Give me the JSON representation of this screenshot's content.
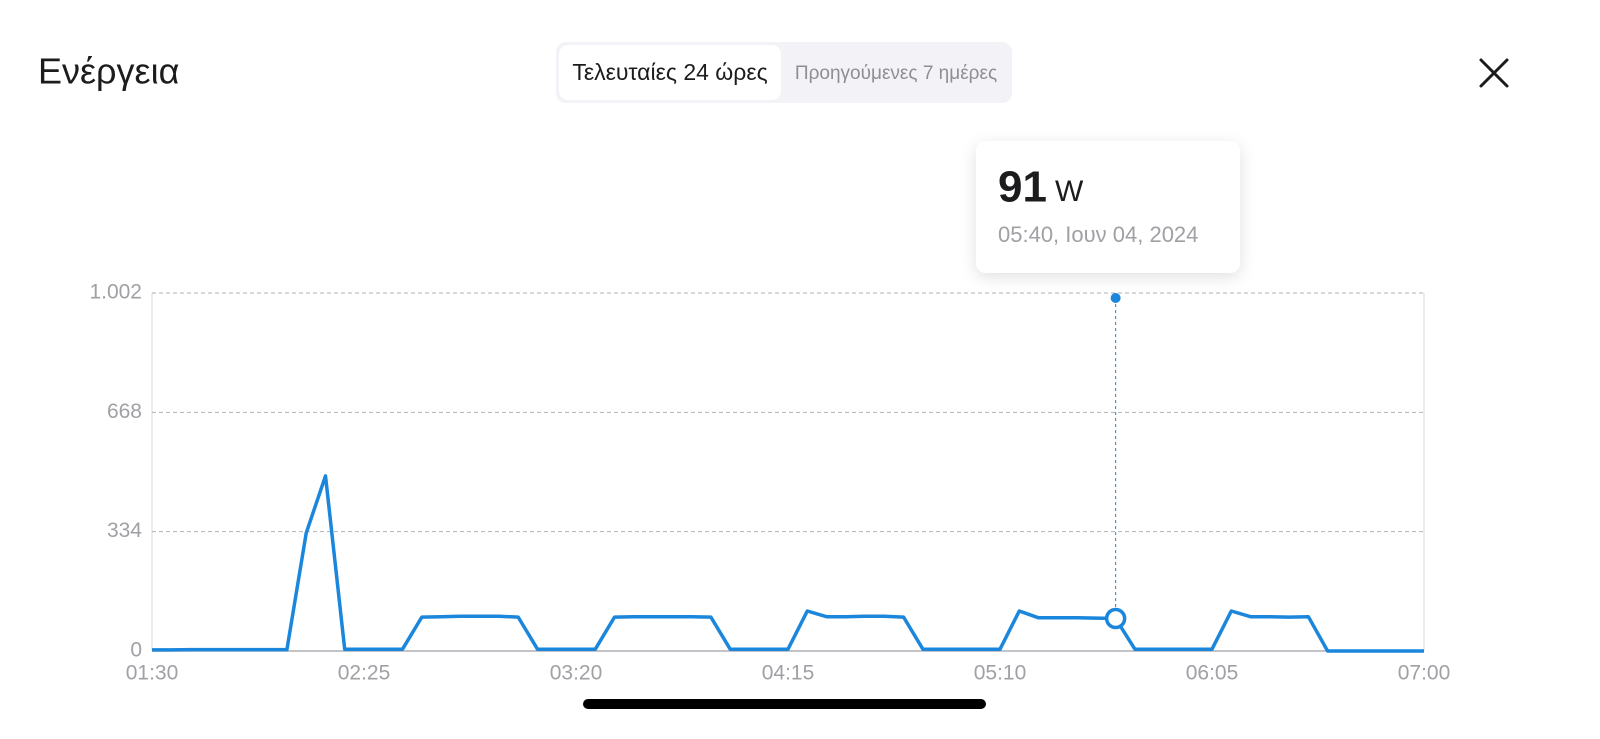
{
  "header": {
    "title": "Ενέργεια",
    "tabs": [
      "Τελευταίες 24 ώρες",
      "Προηγούμενες 7 ημέρες"
    ]
  },
  "chart_data": {
    "type": "line",
    "color": "#1a86dc",
    "grid": true,
    "categories": [
      "01:30",
      null,
      null,
      null,
      null,
      null,
      null,
      null,
      null,
      null,
      null,
      "02:25",
      null,
      null,
      null,
      null,
      null,
      null,
      null,
      null,
      null,
      null,
      "03:20",
      null,
      null,
      null,
      null,
      null,
      null,
      null,
      null,
      null,
      null,
      "04:15",
      null,
      null,
      null,
      null,
      null,
      null,
      null,
      null,
      null,
      null,
      "05:10",
      null,
      null,
      null,
      null,
      null,
      null,
      null,
      null,
      null,
      null,
      "06:05",
      null,
      null,
      null,
      null,
      null,
      null,
      null,
      null,
      null,
      null,
      "07:00"
    ],
    "values": [
      3,
      3,
      4,
      4,
      4,
      4,
      4,
      4,
      330,
      490,
      5,
      5,
      5,
      5,
      95,
      96,
      97,
      97,
      97,
      95,
      5,
      5,
      5,
      5,
      95,
      96,
      96,
      96,
      96,
      95,
      5,
      5,
      5,
      5,
      112,
      96,
      96,
      97,
      97,
      95,
      5,
      5,
      5,
      5,
      5,
      112,
      93,
      93,
      93,
      92,
      91,
      5,
      5,
      5,
      5,
      5,
      112,
      96,
      96,
      95,
      96,
      0,
      0,
      0,
      0,
      0,
      0
    ],
    "ylim": [
      0,
      1002
    ],
    "yticks": [
      0,
      334,
      668,
      {
        "value": 1002,
        "label": "1.002"
      }
    ],
    "tooltip": {
      "value": 91,
      "unit": "W",
      "label": "05:40, Ιουν 04, 2024"
    }
  }
}
